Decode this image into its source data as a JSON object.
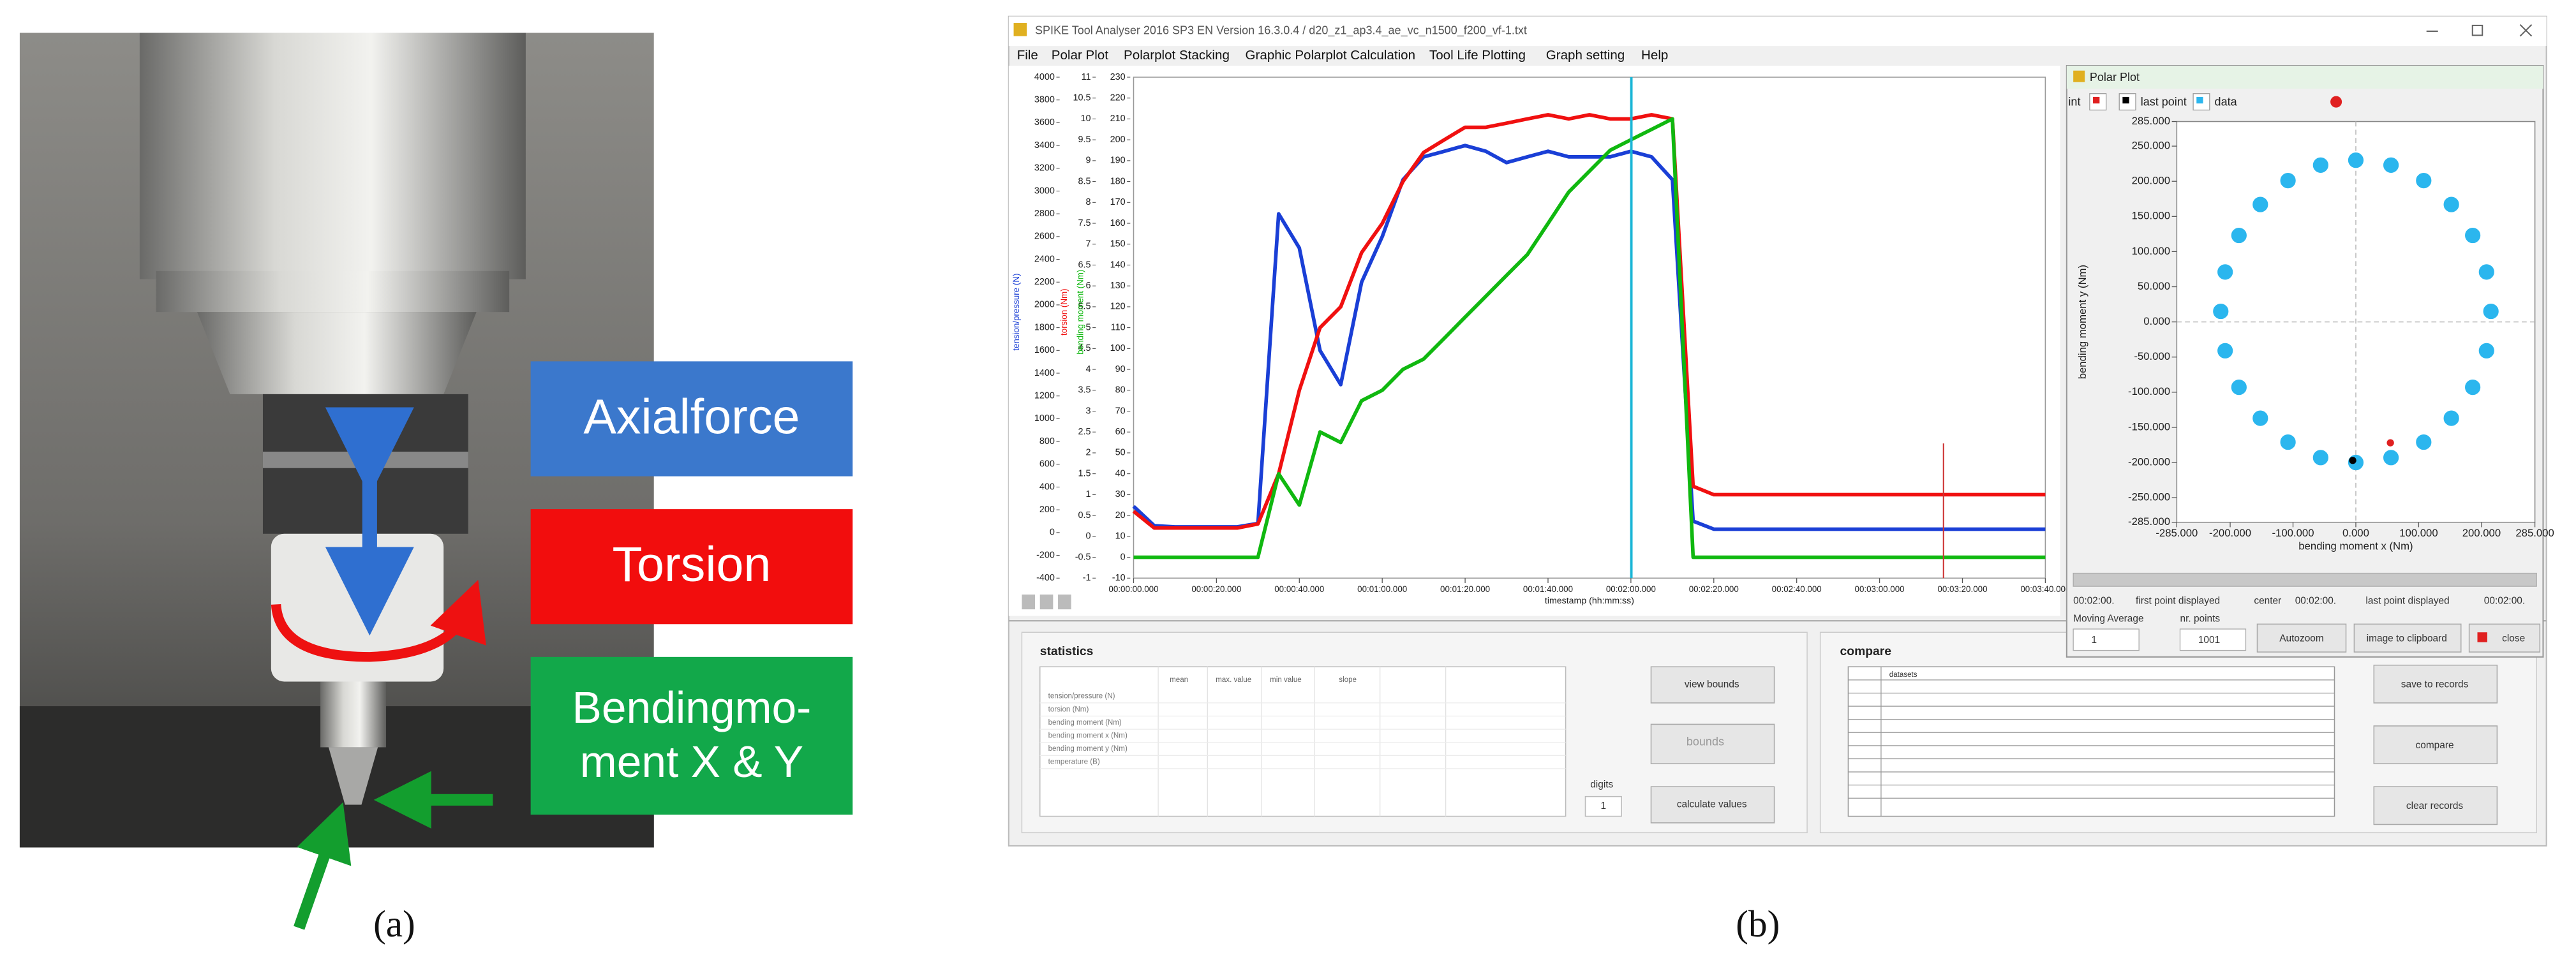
{
  "panel_a": {
    "axial_label": "Axialforce",
    "torsion_label": "Torsion",
    "bending_label": [
      "Bendingmo-",
      "ment X & Y"
    ],
    "caption": "(a)"
  },
  "panel_b": {
    "caption": "(b)",
    "window_title": "SPIKE Tool Analyser 2016 SP3 EN Version 16.3.0.4   /   d20_z1_ap3.4_ae_vc_n1500_f200_vf-1.txt",
    "menu": [
      "File",
      "Polar Plot",
      "Polarplot Stacking",
      "Graphic Polarplot Calculation",
      "Tool Life Plotting",
      "Graph setting",
      "Help"
    ],
    "statistics": {
      "title": "statistics",
      "columns": [
        "mean",
        "max. value",
        "min value",
        "slope"
      ],
      "rows": [
        "tension/pressure (N)",
        "torsion (Nm)",
        "bending moment (Nm)",
        "bending moment x (Nm)",
        "bending moment y (Nm)",
        "temperature (B)"
      ],
      "view_bounds": "view bounds",
      "bounds": "bounds",
      "digits": "digits",
      "digits_value": "1",
      "calculate": "calculate values"
    },
    "compare": {
      "title": "compare",
      "column": "datasets",
      "save": "save to records",
      "compare": "compare",
      "clear": "clear records"
    },
    "polar_footer": {
      "first_time": "00:02:00.",
      "first_label": "first point displayed",
      "center": "center",
      "center_time": "00:02:00.",
      "last_label": "last point displayed",
      "last_time": "00:02:00.",
      "moving_average": "Moving Average",
      "nr_points": "nr. points",
      "moving_value": "1",
      "nr_value": "1001",
      "autozoom": "Autozoom",
      "clipboard": "image to clipboard",
      "close": "close"
    }
  },
  "chart_data": [
    {
      "type": "line",
      "xlabel": "timestamp (hh:mm:ss)",
      "x": [
        0,
        5,
        10,
        15,
        20,
        25,
        30,
        35,
        40,
        45,
        50,
        55,
        60,
        65,
        70,
        75,
        80,
        85,
        90,
        95,
        100,
        105,
        110,
        115,
        120,
        125,
        130,
        135,
        140,
        145,
        150,
        155,
        160,
        165,
        170,
        175,
        180,
        185,
        190,
        195,
        200,
        205,
        210,
        215,
        220
      ],
      "xlim": [
        0,
        220
      ],
      "xticks": [
        {
          "value": 0,
          "label": "00:00:00.000"
        },
        {
          "value": 20,
          "label": "00:00:20.000"
        },
        {
          "value": 40,
          "label": "00:00:40.000"
        },
        {
          "value": 60,
          "label": "00:01:00.000"
        },
        {
          "value": 80,
          "label": "00:01:20.000"
        },
        {
          "value": 100,
          "label": "00:01:40.000"
        },
        {
          "value": 120,
          "label": "00:02:00.000"
        },
        {
          "value": 140,
          "label": "00:02:20.000"
        },
        {
          "value": 160,
          "label": "00:02:40.000"
        },
        {
          "value": 180,
          "label": "00:03:00.000"
        },
        {
          "value": 200,
          "label": "00:03:20.000"
        },
        {
          "value": 220,
          "label": "00:03:40.000"
        }
      ],
      "series": [
        {
          "name": "tension/pressure (N)",
          "color": "#1a3fd6",
          "ylim": [
            -400,
            4000
          ],
          "yticks": [
            4000,
            3800,
            3600,
            3400,
            3200,
            3000,
            2800,
            2600,
            2400,
            2200,
            2000,
            1800,
            1600,
            1400,
            1200,
            1000,
            800,
            600,
            400,
            200,
            0,
            -200,
            -400
          ],
          "values": [
            230,
            60,
            50,
            50,
            50,
            50,
            80,
            2800,
            2500,
            1600,
            1300,
            2200,
            2600,
            3100,
            3300,
            3350,
            3400,
            3350,
            3250,
            3300,
            3350,
            3300,
            3300,
            3300,
            3350,
            3300,
            3100,
            100,
            30,
            30,
            30,
            30,
            30,
            30,
            30,
            30,
            30,
            30,
            30,
            30,
            30,
            30,
            30,
            30,
            30
          ]
        },
        {
          "name": "torsion (Nm)",
          "color": "#f01010",
          "ylim": [
            -1,
            11
          ],
          "yticks": [
            11,
            10.5,
            10,
            9.5,
            9,
            8.5,
            8,
            7.5,
            7,
            6.5,
            6,
            5.5,
            5,
            4.5,
            4,
            3.5,
            3,
            2.5,
            2,
            1.5,
            1,
            0.5,
            0,
            -0.5,
            -1
          ],
          "values": [
            0.6,
            0.2,
            0.2,
            0.2,
            0.2,
            0.2,
            0.3,
            1.5,
            3.5,
            5,
            5.5,
            6.8,
            7.5,
            8.5,
            9.2,
            9.5,
            9.8,
            9.8,
            9.9,
            10,
            10.1,
            10,
            10.1,
            10,
            10,
            10.1,
            10,
            1.2,
            1,
            1,
            1,
            1,
            1,
            1,
            1,
            1,
            1,
            1,
            1,
            1,
            1,
            1,
            1,
            1,
            1
          ]
        },
        {
          "name": "bending moment (Nm)",
          "color": "#10b810",
          "ylim": [
            -10,
            230
          ],
          "yticks": [
            230,
            220,
            210,
            200,
            190,
            180,
            170,
            160,
            150,
            140,
            130,
            120,
            110,
            100,
            90,
            80,
            70,
            60,
            50,
            40,
            30,
            20,
            10,
            0,
            -10
          ],
          "values": [
            0,
            0,
            0,
            0,
            0,
            0,
            0,
            40,
            25,
            60,
            55,
            75,
            80,
            90,
            95,
            105,
            115,
            125,
            135,
            145,
            160,
            175,
            185,
            195,
            200,
            205,
            210,
            0,
            0,
            0,
            0,
            0,
            0,
            0,
            0,
            0,
            0,
            0,
            0,
            0,
            0,
            0,
            0,
            0,
            0
          ]
        }
      ]
    },
    {
      "type": "scatter",
      "title": "Polar Plot",
      "xlabel": "bending moment x (Nm)",
      "ylabel": "bending moment y (Nm)",
      "xlim": [
        -285,
        285
      ],
      "ylim": [
        -285,
        285
      ],
      "xticks": [
        {
          "value": -285,
          "label": "-285.000"
        },
        {
          "value": -200,
          "label": "-200.000"
        },
        {
          "value": -100,
          "label": "-100.000"
        },
        {
          "value": 0,
          "label": "0.000"
        },
        {
          "value": 100,
          "label": "100.000"
        },
        {
          "value": 200,
          "label": "200.000"
        },
        {
          "value": 285,
          "label": "285.000"
        }
      ],
      "yticks": [
        {
          "value": 285,
          "label": "285.000"
        },
        {
          "value": 250,
          "label": "250.000"
        },
        {
          "value": 200,
          "label": "200.000"
        },
        {
          "value": 150,
          "label": "150.000"
        },
        {
          "value": 100,
          "label": "100.000"
        },
        {
          "value": 50,
          "label": "50.000"
        },
        {
          "value": 0,
          "label": "0.000"
        },
        {
          "value": -50,
          "label": "-50.000"
        },
        {
          "value": -100,
          "label": "-100.000"
        },
        {
          "value": -150,
          "label": "-150.000"
        },
        {
          "value": -200,
          "label": "-200.000"
        },
        {
          "value": -250,
          "label": "-250.000"
        },
        {
          "value": -285,
          "label": "-285.000"
        }
      ],
      "series": [
        {
          "name": "int",
          "color": "#e02020",
          "x": [
            55
          ],
          "values": [
            -172
          ]
        },
        {
          "name": "last point",
          "color": "#000000",
          "x": [
            -5
          ],
          "values": [
            -197
          ]
        },
        {
          "name": "data",
          "color": "#2bb6ee",
          "x": [
            215,
            208,
            186,
            152,
            108,
            56,
            0,
            -56,
            -108,
            -152,
            -186,
            -208,
            -215,
            -208,
            -186,
            -152,
            -108,
            -56,
            0,
            56,
            108,
            152,
            186,
            208
          ],
          "values": [
            15,
            71,
            123,
            167,
            201,
            223,
            230,
            223,
            201,
            167,
            123,
            71,
            15,
            -41,
            -93,
            -137,
            -171,
            -193,
            -200,
            -193,
            -171,
            -137,
            -93,
            -41
          ]
        }
      ]
    }
  ]
}
